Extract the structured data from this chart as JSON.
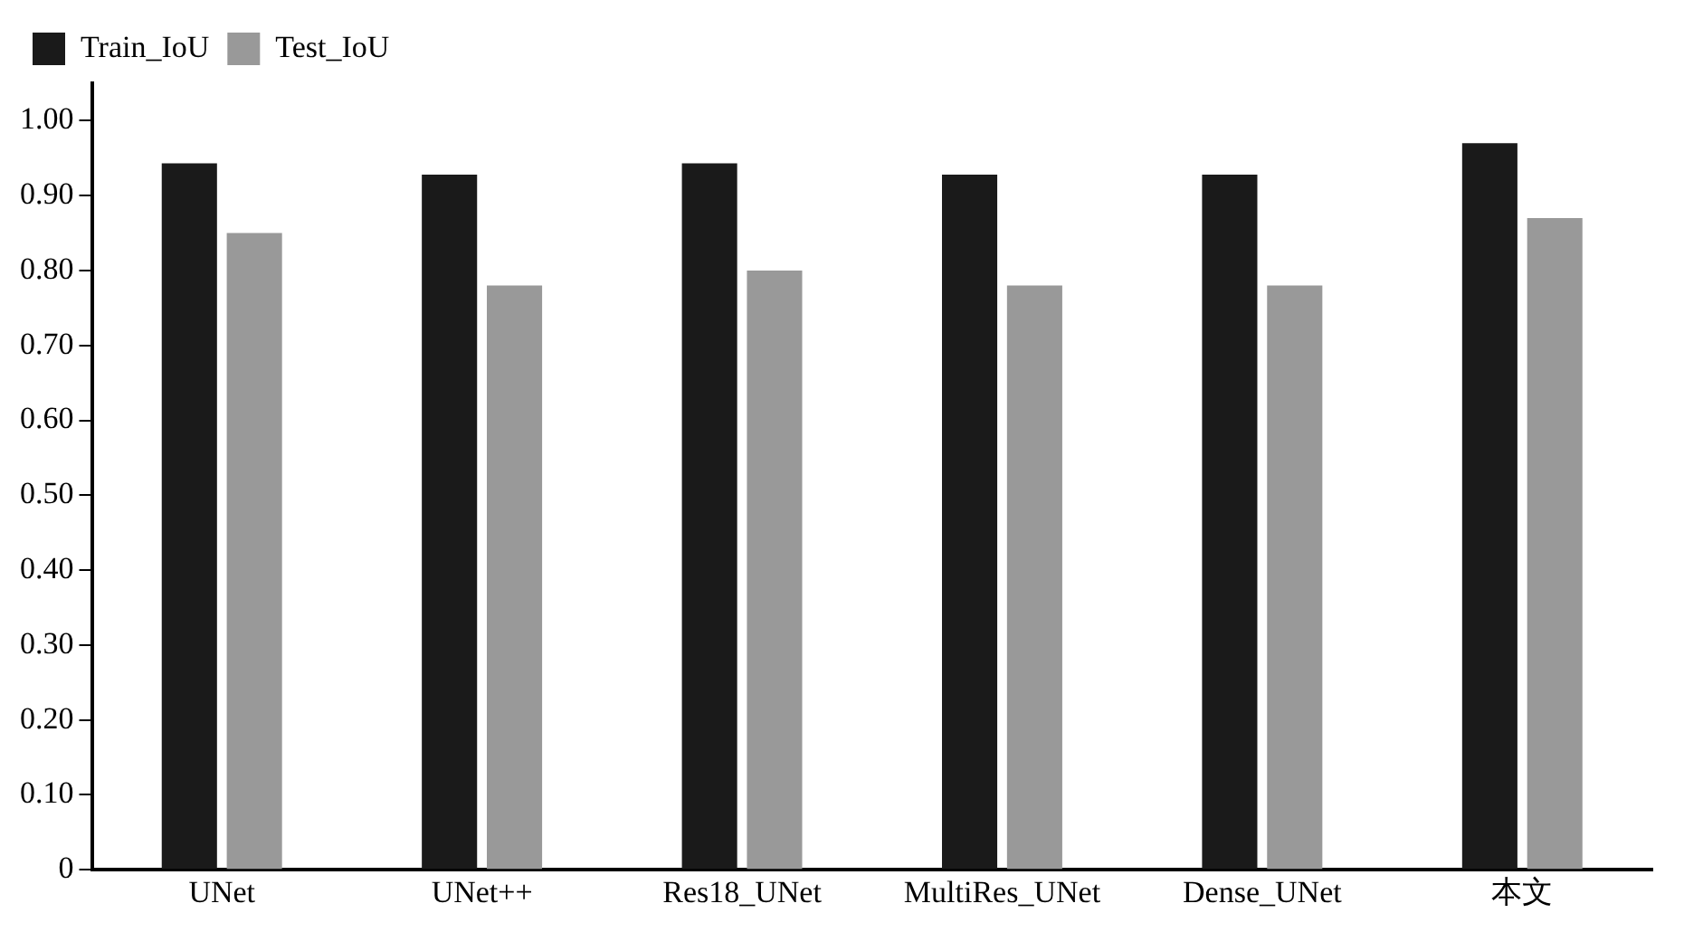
{
  "chart_data": {
    "type": "bar",
    "categories": [
      "UNet",
      "UNet++",
      "Res18_UNet",
      "MultiRes_UNet",
      "Dense_UNet",
      "本文"
    ],
    "series": [
      {
        "name": "Train_IoU",
        "color": "#1a1a1a",
        "values": [
          0.943,
          0.928,
          0.943,
          0.928,
          0.928,
          0.97
        ]
      },
      {
        "name": "Test_IoU",
        "color": "#999999",
        "values": [
          0.85,
          0.78,
          0.8,
          0.78,
          0.78,
          0.87
        ]
      }
    ],
    "ylim": [
      0,
      1.05
    ],
    "yticks": [
      {
        "value": 0,
        "label": "0"
      },
      {
        "value": 0.1,
        "label": "0.10"
      },
      {
        "value": 0.2,
        "label": "0.20"
      },
      {
        "value": 0.3,
        "label": "0.30"
      },
      {
        "value": 0.4,
        "label": "0.40"
      },
      {
        "value": 0.5,
        "label": "0.50"
      },
      {
        "value": 0.6,
        "label": "0.60"
      },
      {
        "value": 0.7,
        "label": "0.70"
      },
      {
        "value": 0.8,
        "label": "0.80"
      },
      {
        "value": 0.9,
        "label": "0.90"
      },
      {
        "value": 1,
        "label": "1.00"
      }
    ],
    "grid": false,
    "legend": "top left"
  }
}
